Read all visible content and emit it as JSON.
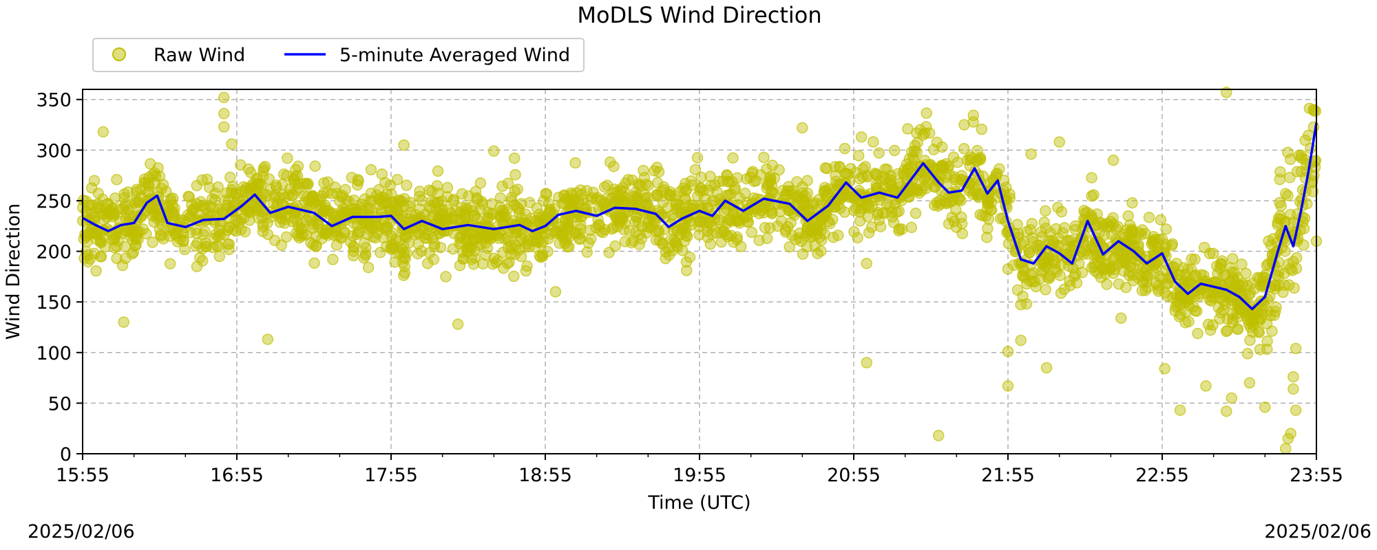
{
  "chart_data": {
    "type": "scatter",
    "title": "MoDLS Wind Direction",
    "xlabel": "Time (UTC)",
    "ylabel": "Wind Direction",
    "x_range": [
      "15:55",
      "23:55"
    ],
    "ylim": [
      0,
      360
    ],
    "x_ticks": [
      "15:55",
      "16:55",
      "17:55",
      "18:55",
      "19:55",
      "20:55",
      "21:55",
      "22:55",
      "23:55"
    ],
    "y_ticks": [
      0,
      50,
      100,
      150,
      200,
      250,
      300,
      350
    ],
    "grid": true,
    "legend_position": "top-left, outside plot",
    "series": [
      {
        "name": "Raw Wind",
        "kind": "scatter",
        "color": "#bfbf00",
        "spread_approx": 35,
        "outliers": [
          {
            "x": "16:50",
            "y": 352
          },
          {
            "x": "16:50",
            "y": 336
          },
          {
            "x": "16:50",
            "y": 323
          },
          {
            "x": "16:03",
            "y": 318
          },
          {
            "x": "16:53",
            "y": 306
          },
          {
            "x": "16:11",
            "y": 130
          },
          {
            "x": "17:07",
            "y": 113
          },
          {
            "x": "18:21",
            "y": 128
          },
          {
            "x": "18:00",
            "y": 305
          },
          {
            "x": "18:35",
            "y": 299
          },
          {
            "x": "18:43",
            "y": 292
          },
          {
            "x": "18:59",
            "y": 160
          },
          {
            "x": "19:50",
            "y": 181
          },
          {
            "x": "20:35",
            "y": 322
          },
          {
            "x": "20:58",
            "y": 313
          },
          {
            "x": "21:00",
            "y": 90
          },
          {
            "x": "21:00",
            "y": 188
          },
          {
            "x": "21:16",
            "y": 321
          },
          {
            "x": "21:28",
            "y": 18
          },
          {
            "x": "21:38",
            "y": 325
          },
          {
            "x": "21:55",
            "y": 101
          },
          {
            "x": "21:55",
            "y": 67
          },
          {
            "x": "22:00",
            "y": 112
          },
          {
            "x": "22:04",
            "y": 296
          },
          {
            "x": "22:10",
            "y": 85
          },
          {
            "x": "22:15",
            "y": 308
          },
          {
            "x": "22:36",
            "y": 290
          },
          {
            "x": "22:39",
            "y": 134
          },
          {
            "x": "22:56",
            "y": 84
          },
          {
            "x": "23:02",
            "y": 43
          },
          {
            "x": "23:12",
            "y": 67
          },
          {
            "x": "23:20",
            "y": 42
          },
          {
            "x": "23:20",
            "y": 357
          },
          {
            "x": "23:22",
            "y": 55
          },
          {
            "x": "23:29",
            "y": 70
          },
          {
            "x": "23:33",
            "y": 103
          },
          {
            "x": "23:35",
            "y": 46
          },
          {
            "x": "23:43",
            "y": 5
          },
          {
            "x": "23:44",
            "y": 15
          },
          {
            "x": "23:45",
            "y": 20
          },
          {
            "x": "23:46",
            "y": 76
          },
          {
            "x": "23:46",
            "y": 64
          },
          {
            "x": "23:47",
            "y": 104
          },
          {
            "x": "23:47",
            "y": 43
          },
          {
            "x": "23:55",
            "y": 210
          }
        ]
      },
      {
        "name": "5-minute Averaged Wind",
        "kind": "line",
        "color": "#0000ff",
        "points": [
          {
            "x": "15:55",
            "y": 233
          },
          {
            "x": "16:00",
            "y": 226
          },
          {
            "x": "16:05",
            "y": 220
          },
          {
            "x": "16:10",
            "y": 226
          },
          {
            "x": "16:15",
            "y": 228
          },
          {
            "x": "16:20",
            "y": 248
          },
          {
            "x": "16:24",
            "y": 255
          },
          {
            "x": "16:28",
            "y": 228
          },
          {
            "x": "16:35",
            "y": 224
          },
          {
            "x": "16:42",
            "y": 231
          },
          {
            "x": "16:50",
            "y": 232
          },
          {
            "x": "16:57",
            "y": 245
          },
          {
            "x": "17:02",
            "y": 256
          },
          {
            "x": "17:08",
            "y": 238
          },
          {
            "x": "17:15",
            "y": 244
          },
          {
            "x": "17:25",
            "y": 238
          },
          {
            "x": "17:32",
            "y": 225
          },
          {
            "x": "17:40",
            "y": 234
          },
          {
            "x": "17:50",
            "y": 234
          },
          {
            "x": "17:55",
            "y": 235
          },
          {
            "x": "18:00",
            "y": 222
          },
          {
            "x": "18:07",
            "y": 230
          },
          {
            "x": "18:15",
            "y": 222
          },
          {
            "x": "18:25",
            "y": 226
          },
          {
            "x": "18:35",
            "y": 222
          },
          {
            "x": "18:45",
            "y": 226
          },
          {
            "x": "18:50",
            "y": 220
          },
          {
            "x": "18:55",
            "y": 225
          },
          {
            "x": "19:00",
            "y": 236
          },
          {
            "x": "19:07",
            "y": 240
          },
          {
            "x": "19:15",
            "y": 235
          },
          {
            "x": "19:22",
            "y": 243
          },
          {
            "x": "19:30",
            "y": 242
          },
          {
            "x": "19:38",
            "y": 237
          },
          {
            "x": "19:43",
            "y": 224
          },
          {
            "x": "19:48",
            "y": 232
          },
          {
            "x": "19:55",
            "y": 240
          },
          {
            "x": "20:00",
            "y": 235
          },
          {
            "x": "20:05",
            "y": 250
          },
          {
            "x": "20:12",
            "y": 240
          },
          {
            "x": "20:20",
            "y": 252
          },
          {
            "x": "20:30",
            "y": 247
          },
          {
            "x": "20:37",
            "y": 230
          },
          {
            "x": "20:45",
            "y": 245
          },
          {
            "x": "20:52",
            "y": 268
          },
          {
            "x": "20:58",
            "y": 253
          },
          {
            "x": "21:05",
            "y": 258
          },
          {
            "x": "21:12",
            "y": 253
          },
          {
            "x": "21:22",
            "y": 287
          },
          {
            "x": "21:28",
            "y": 268
          },
          {
            "x": "21:32",
            "y": 258
          },
          {
            "x": "21:37",
            "y": 260
          },
          {
            "x": "21:42",
            "y": 282
          },
          {
            "x": "21:47",
            "y": 257
          },
          {
            "x": "21:51",
            "y": 270
          },
          {
            "x": "21:55",
            "y": 230
          },
          {
            "x": "22:00",
            "y": 192
          },
          {
            "x": "22:05",
            "y": 188
          },
          {
            "x": "22:10",
            "y": 205
          },
          {
            "x": "22:15",
            "y": 198
          },
          {
            "x": "22:20",
            "y": 188
          },
          {
            "x": "22:26",
            "y": 230
          },
          {
            "x": "22:32",
            "y": 197
          },
          {
            "x": "22:38",
            "y": 210
          },
          {
            "x": "22:44",
            "y": 200
          },
          {
            "x": "22:49",
            "y": 188
          },
          {
            "x": "22:55",
            "y": 198
          },
          {
            "x": "23:00",
            "y": 170
          },
          {
            "x": "23:05",
            "y": 158
          },
          {
            "x": "23:10",
            "y": 168
          },
          {
            "x": "23:15",
            "y": 165
          },
          {
            "x": "23:20",
            "y": 162
          },
          {
            "x": "23:25",
            "y": 155
          },
          {
            "x": "23:30",
            "y": 143
          },
          {
            "x": "23:35",
            "y": 155
          },
          {
            "x": "23:40",
            "y": 200
          },
          {
            "x": "23:43",
            "y": 225
          },
          {
            "x": "23:46",
            "y": 205
          },
          {
            "x": "23:49",
            "y": 240
          },
          {
            "x": "23:52",
            "y": 280
          },
          {
            "x": "23:55",
            "y": 327
          }
        ]
      }
    ]
  },
  "footer": {
    "start_date": "2025/02/06",
    "end_date": "2025/02/06"
  }
}
